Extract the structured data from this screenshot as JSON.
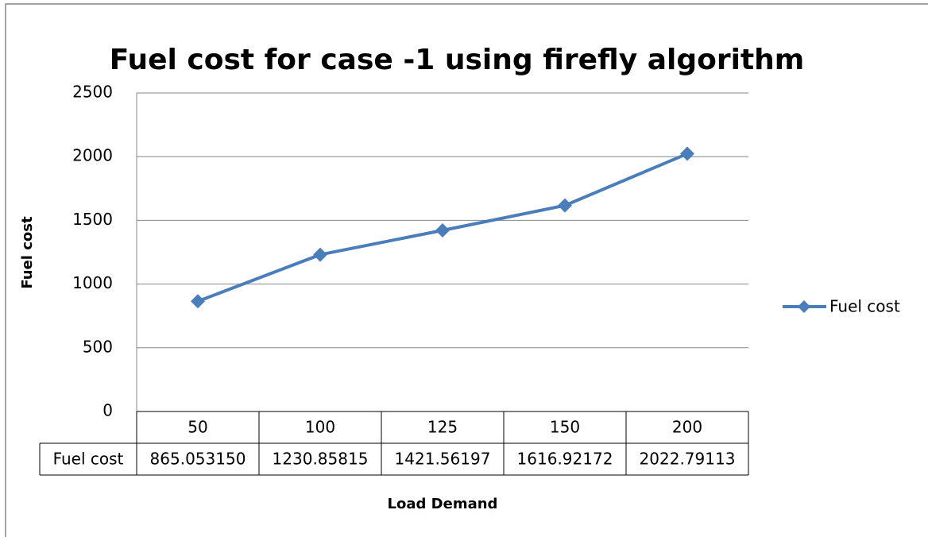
{
  "chart_data": {
    "type": "line",
    "title": "Fuel cost for case -1 using firefly algorithm",
    "x_label": "Load Demand",
    "y_label": "Fuel cost",
    "categories": [
      "50",
      "100",
      "125",
      "150",
      "200"
    ],
    "series": [
      {
        "name": "Fuel cost",
        "color": "#4a7ebb",
        "values": [
          865.05315,
          1230.85815,
          1421.56197,
          1616.92172,
          2022.79113
        ],
        "value_labels": [
          "865.053150",
          "1230.85815",
          "1421.56197",
          "1616.92172",
          "2022.79113"
        ]
      }
    ],
    "ylim": [
      0,
      2500
    ],
    "yticks": [
      0,
      500,
      1000,
      1500,
      2000,
      2500
    ],
    "grid": true,
    "legend": "right",
    "data_table": true
  }
}
